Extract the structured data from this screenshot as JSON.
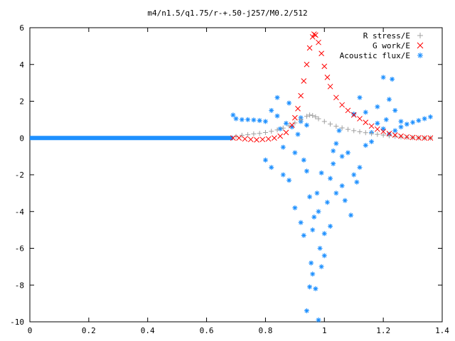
{
  "chart_data": {
    "type": "scatter",
    "title": "m4/n1.5/q1.75/r-+.50-j257/M0.2/512",
    "xlabel": "",
    "ylabel": "",
    "xlim": [
      0,
      1.4
    ],
    "ylim": [
      -10,
      6
    ],
    "xticks": [
      "0",
      "0.2",
      "0.4",
      "0.6",
      "0.8",
      "1",
      "1.2",
      "1.4"
    ],
    "yticks": [
      "-10",
      "-8",
      "-6",
      "-4",
      "-2",
      "0",
      "2",
      "4",
      "6"
    ],
    "grid": false,
    "legend_position": "top-right",
    "series": [
      {
        "name": "R stress/E",
        "marker": "+",
        "color": "#a0a0a0",
        "points": [
          [
            0.7,
            0.08
          ],
          [
            0.72,
            0.15
          ],
          [
            0.74,
            0.18
          ],
          [
            0.76,
            0.22
          ],
          [
            0.78,
            0.25
          ],
          [
            0.8,
            0.3
          ],
          [
            0.82,
            0.36
          ],
          [
            0.84,
            0.44
          ],
          [
            0.86,
            0.54
          ],
          [
            0.88,
            0.66
          ],
          [
            0.9,
            0.82
          ],
          [
            0.92,
            1.0
          ],
          [
            0.94,
            1.18
          ],
          [
            0.95,
            1.25
          ],
          [
            0.96,
            1.22
          ],
          [
            0.97,
            1.15
          ],
          [
            0.98,
            1.05
          ],
          [
            1.0,
            0.9
          ],
          [
            1.02,
            0.76
          ],
          [
            1.04,
            0.64
          ],
          [
            1.06,
            0.55
          ],
          [
            1.08,
            0.47
          ],
          [
            1.1,
            0.4
          ],
          [
            1.12,
            0.34
          ],
          [
            1.14,
            0.29
          ],
          [
            1.16,
            0.24
          ],
          [
            1.18,
            0.2
          ],
          [
            1.2,
            0.16
          ],
          [
            1.22,
            0.12
          ],
          [
            1.24,
            0.09
          ],
          [
            1.26,
            0.06
          ],
          [
            1.28,
            0.04
          ],
          [
            1.3,
            0.02
          ],
          [
            1.32,
            0.01
          ],
          [
            1.34,
            0.0
          ],
          [
            1.36,
            0.0
          ]
        ]
      },
      {
        "name": "G work/E",
        "marker": "x",
        "color": "#ff0000",
        "points": [
          [
            0.69,
            0.0
          ],
          [
            0.71,
            0.0
          ],
          [
            0.73,
            -0.05
          ],
          [
            0.75,
            -0.08
          ],
          [
            0.77,
            -0.1
          ],
          [
            0.79,
            -0.08
          ],
          [
            0.81,
            -0.05
          ],
          [
            0.83,
            0.0
          ],
          [
            0.85,
            0.1
          ],
          [
            0.87,
            0.3
          ],
          [
            0.89,
            0.7
          ],
          [
            0.9,
            1.1
          ],
          [
            0.91,
            1.6
          ],
          [
            0.92,
            2.3
          ],
          [
            0.93,
            3.1
          ],
          [
            0.94,
            4.0
          ],
          [
            0.95,
            4.9
          ],
          [
            0.96,
            5.5
          ],
          [
            0.965,
            5.65
          ],
          [
            0.97,
            5.6
          ],
          [
            0.98,
            5.2
          ],
          [
            0.99,
            4.6
          ],
          [
            1.0,
            3.9
          ],
          [
            1.01,
            3.3
          ],
          [
            1.02,
            2.8
          ],
          [
            1.04,
            2.2
          ],
          [
            1.06,
            1.8
          ],
          [
            1.08,
            1.5
          ],
          [
            1.1,
            1.25
          ],
          [
            1.12,
            1.05
          ],
          [
            1.14,
            0.85
          ],
          [
            1.16,
            0.65
          ],
          [
            1.18,
            0.48
          ],
          [
            1.2,
            0.35
          ],
          [
            1.22,
            0.24
          ],
          [
            1.24,
            0.16
          ],
          [
            1.26,
            0.1
          ],
          [
            1.28,
            0.06
          ],
          [
            1.3,
            0.03
          ],
          [
            1.32,
            0.01
          ],
          [
            1.34,
            0.0
          ],
          [
            1.36,
            0.0
          ]
        ]
      },
      {
        "name": "Acoustic flux/E",
        "marker": "*",
        "color": "#1e90ff",
        "baseline_x": [
          0.0,
          0.69
        ],
        "baseline_y": 0,
        "points": [
          [
            0.69,
            1.25
          ],
          [
            0.7,
            1.05
          ],
          [
            0.72,
            1.0
          ],
          [
            0.74,
            1.0
          ],
          [
            0.76,
            0.98
          ],
          [
            0.78,
            0.95
          ],
          [
            0.8,
            0.9
          ],
          [
            0.82,
            1.5
          ],
          [
            0.84,
            1.2
          ],
          [
            0.85,
            0.5
          ],
          [
            0.86,
            -0.5
          ],
          [
            0.87,
            0.8
          ],
          [
            0.88,
            1.9
          ],
          [
            0.89,
            0.6
          ],
          [
            0.9,
            -0.8
          ],
          [
            0.91,
            0.2
          ],
          [
            0.92,
            1.1
          ],
          [
            0.93,
            -1.2
          ],
          [
            0.94,
            -1.8
          ],
          [
            0.95,
            -3.2
          ],
          [
            0.955,
            -6.8
          ],
          [
            0.96,
            -5.0
          ],
          [
            0.965,
            -4.3
          ],
          [
            0.97,
            -8.2
          ],
          [
            0.975,
            -3.0
          ],
          [
            0.98,
            -4.0
          ],
          [
            0.985,
            -6.0
          ],
          [
            0.99,
            -7.0
          ],
          [
            1.0,
            -5.2
          ],
          [
            1.01,
            -3.5
          ],
          [
            1.02,
            -2.2
          ],
          [
            1.03,
            -1.4
          ],
          [
            1.04,
            -0.3
          ],
          [
            1.05,
            0.4
          ],
          [
            1.06,
            -1.0
          ],
          [
            1.08,
            -0.8
          ],
          [
            1.1,
            -2.0
          ],
          [
            1.12,
            -1.6
          ],
          [
            1.14,
            -0.4
          ],
          [
            1.16,
            0.3
          ],
          [
            1.18,
            0.8
          ],
          [
            1.2,
            0.5
          ],
          [
            1.22,
            0.2
          ],
          [
            1.24,
            0.4
          ],
          [
            1.26,
            0.6
          ],
          [
            1.28,
            0.75
          ],
          [
            1.3,
            0.85
          ],
          [
            1.32,
            0.95
          ],
          [
            1.34,
            1.05
          ],
          [
            1.36,
            1.15
          ],
          [
            0.8,
            -1.2
          ],
          [
            0.82,
            -1.6
          ],
          [
            0.84,
            2.2
          ],
          [
            0.86,
            -2.0
          ],
          [
            0.88,
            -2.3
          ],
          [
            0.9,
            -3.8
          ],
          [
            0.92,
            -4.6
          ],
          [
            0.93,
            -5.3
          ],
          [
            0.94,
            -9.4
          ],
          [
            0.95,
            -8.1
          ],
          [
            0.96,
            -7.4
          ],
          [
            0.98,
            -9.9
          ],
          [
            1.0,
            -6.4
          ],
          [
            1.02,
            -4.8
          ],
          [
            1.04,
            -3.0
          ],
          [
            1.06,
            -2.6
          ],
          [
            1.1,
            1.3
          ],
          [
            1.12,
            2.2
          ],
          [
            1.14,
            1.4
          ],
          [
            1.16,
            -0.2
          ],
          [
            1.18,
            1.7
          ],
          [
            1.2,
            3.3
          ],
          [
            1.21,
            1.0
          ],
          [
            1.22,
            2.1
          ],
          [
            1.23,
            3.2
          ],
          [
            1.24,
            1.5
          ],
          [
            1.26,
            0.9
          ],
          [
            0.92,
            0.9
          ],
          [
            0.94,
            0.7
          ],
          [
            0.99,
            -1.9
          ],
          [
            1.03,
            -0.7
          ],
          [
            1.07,
            -3.4
          ],
          [
            1.09,
            -4.2
          ],
          [
            1.11,
            -2.4
          ]
        ]
      }
    ]
  }
}
